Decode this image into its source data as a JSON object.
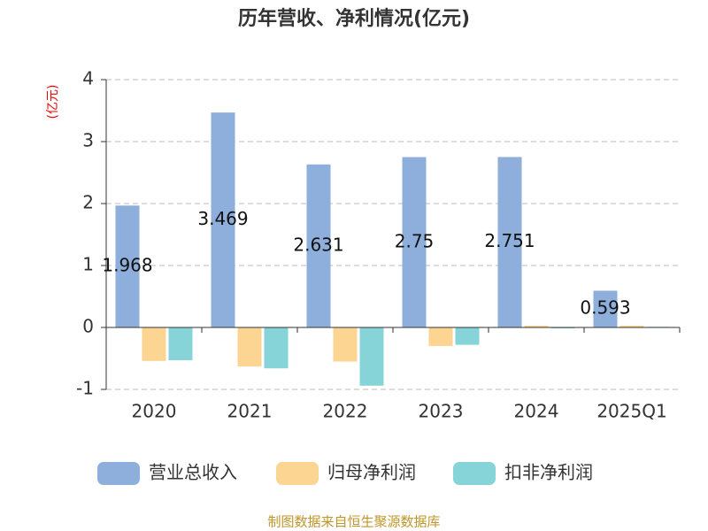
{
  "chart_data": {
    "type": "bar",
    "title": "历年营收、净利情况(亿元)",
    "y_label": "(亿元)",
    "categories": [
      "2020",
      "2021",
      "2022",
      "2023",
      "2024",
      "2025Q1"
    ],
    "series": [
      {
        "name": "营业总收入",
        "color": "#8eaedc",
        "values": [
          1.968,
          3.469,
          2.631,
          2.75,
          2.751,
          0.593
        ],
        "show_labels": true
      },
      {
        "name": "归母净利润",
        "color": "#fcd592",
        "values": [
          -0.54,
          -0.63,
          -0.55,
          -0.3,
          0.03,
          0.03
        ]
      },
      {
        "name": "扣非净利润",
        "color": "#86d4d8",
        "values": [
          -0.53,
          -0.66,
          -0.94,
          -0.28,
          -0.01,
          0.01
        ]
      }
    ],
    "ylim": [
      -1,
      4
    ],
    "yticks": [
      -1,
      0,
      1,
      2,
      3,
      4
    ],
    "grid": true,
    "source": "制图数据来自恒生聚源数据库"
  }
}
